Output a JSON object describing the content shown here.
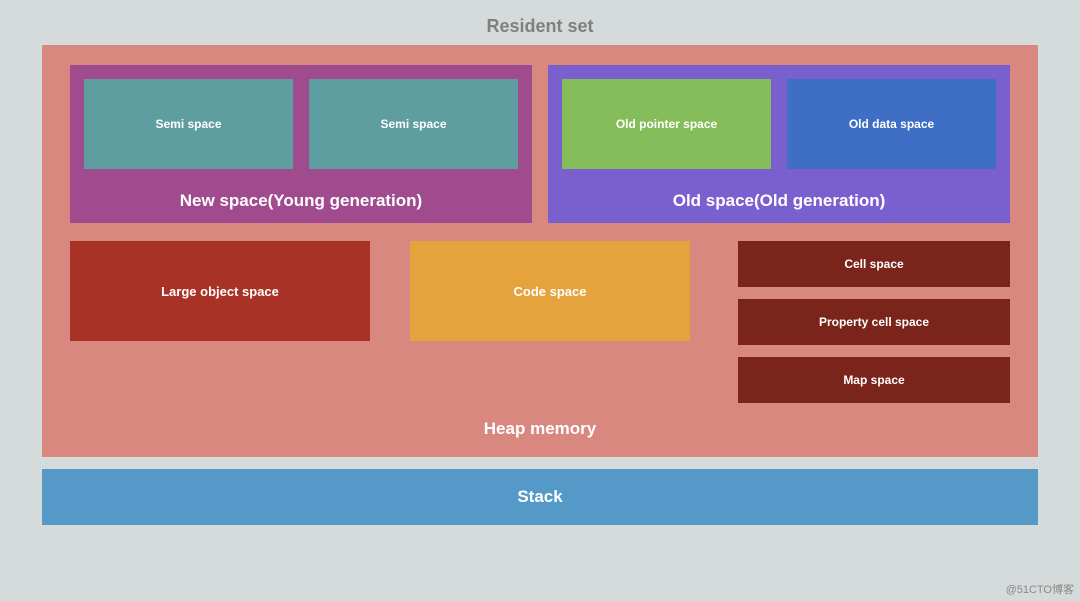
{
  "type": "diagram",
  "title": "Resident set",
  "background_color": "#d5dbdb",
  "title_color": "#808080",
  "title_fontsize": 18,
  "heap": {
    "label": "Heap memory",
    "bg_color": "#d98880",
    "text_color": "#ffffff",
    "label_fontsize": 17,
    "new_space": {
      "label": "New space(Young generation)",
      "bg_color": "#a04b8e",
      "semi1": {
        "label": "Semi space",
        "bg_color": "#5f9ea0"
      },
      "semi2": {
        "label": "Semi space",
        "bg_color": "#5f9ea0"
      }
    },
    "old_space": {
      "label": "Old space(Old generation)",
      "bg_color": "#7a5fcf",
      "old_pointer": {
        "label": "Old pointer space",
        "bg_color": "#84bd5a"
      },
      "old_data": {
        "label": "Old data space",
        "bg_color": "#3f6fc4"
      }
    },
    "large_object": {
      "label": "Large object space",
      "bg_color": "#a93226"
    },
    "code_space": {
      "label": "Code space",
      "bg_color": "#e6a23c"
    },
    "cell_space": {
      "label": "Cell space",
      "bg_color": "#7b241c"
    },
    "property_cell_space": {
      "label": "Property cell space",
      "bg_color": "#7b241c"
    },
    "map_space": {
      "label": "Map space",
      "bg_color": "#7b241c"
    }
  },
  "stack": {
    "label": "Stack",
    "bg_color": "#5499c7",
    "text_color": "#ffffff",
    "fontsize": 17
  },
  "watermark": "@51CTO博客",
  "box_font": {
    "inner_box_fontsize": 12,
    "mid_box_fontsize": 13,
    "small_box_fontsize": 12
  }
}
